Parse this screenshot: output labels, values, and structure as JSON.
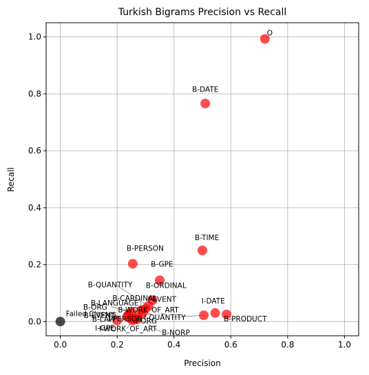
{
  "chart_data": {
    "type": "scatter",
    "title": "Turkish Bigrams Precision vs Recall",
    "xlabel": "Precision",
    "ylabel": "Recall",
    "xlim": [
      -0.05,
      1.05
    ],
    "ylim": [
      -0.05,
      1.05
    ],
    "xticks": [
      "0.0",
      "0.2",
      "0.4",
      "0.6",
      "0.8",
      "1.0"
    ],
    "yticks": [
      "0.0",
      "0.2",
      "0.4",
      "0.6",
      "0.8",
      "1.0"
    ],
    "grid": true,
    "colors": {
      "point": "#ff0000",
      "failed": "#000000",
      "grid": "#b0b0b0"
    },
    "points": [
      {
        "label": "O",
        "x": 0.72,
        "y": 0.993
      },
      {
        "label": "B-DATE",
        "x": 0.51,
        "y": 0.766
      },
      {
        "label": "B-TIME",
        "x": 0.5,
        "y": 0.25
      },
      {
        "label": "B-PERSON",
        "x": 0.255,
        "y": 0.203
      },
      {
        "label": "B-GPE",
        "x": 0.35,
        "y": 0.145
      },
      {
        "label": "B-ORDINAL",
        "x": 0.325,
        "y": 0.075
      },
      {
        "label": "B-QUANTITY",
        "x": 0.31,
        "y": 0.055
      },
      {
        "label": "I-EVENT",
        "x": 0.3,
        "y": 0.045
      },
      {
        "label": "B-CARDINAL",
        "x": 0.285,
        "y": 0.04
      },
      {
        "label": "B-ORG",
        "x": 0.25,
        "y": 0.035
      },
      {
        "label": "B-LANGUAGE",
        "x": 0.24,
        "y": 0.025
      },
      {
        "label": "B-WORK_OF_ART",
        "x": 0.29,
        "y": 0.03
      },
      {
        "label": "I-DATE",
        "x": 0.545,
        "y": 0.03
      },
      {
        "label": "B-PRODUCT",
        "x": 0.585,
        "y": 0.025
      },
      {
        "label": "I-QUANTITY",
        "x": 0.505,
        "y": 0.022
      },
      {
        "label": "B-NORP",
        "x": 0.27,
        "y": 0.015
      },
      {
        "label": "B-EVENT",
        "x": 0.235,
        "y": 0.018
      },
      {
        "label": "B-LAW",
        "x": 0.245,
        "y": 0.012
      },
      {
        "label": "I-ORG",
        "x": 0.27,
        "y": 0.008
      },
      {
        "label": "I-GPE",
        "x": 0.2,
        "y": 0.004
      },
      {
        "label": "I-WORK_OF_ART",
        "x": 0.255,
        "y": 0.004
      },
      {
        "label": "I-PERSON",
        "x": 0.26,
        "y": 0.01
      }
    ],
    "failed": {
      "label": "Failed Classes",
      "x": 0.0,
      "y": 0.0
    }
  }
}
